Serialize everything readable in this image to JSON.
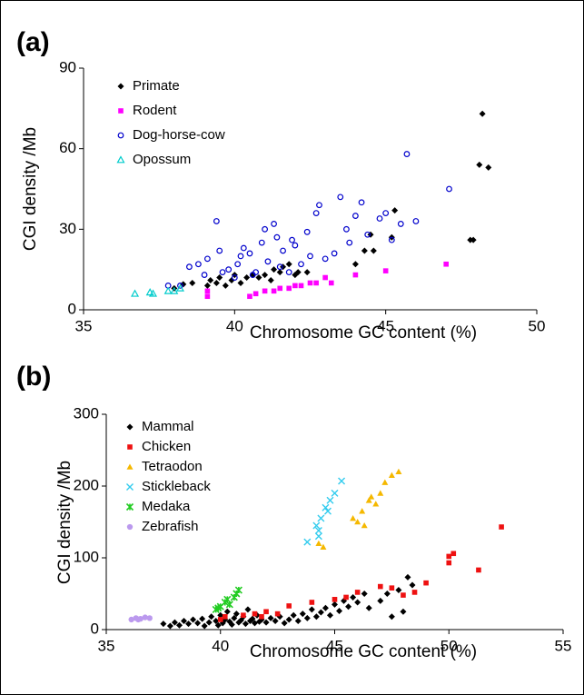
{
  "chart_data": [
    {
      "type": "scatter",
      "panel_label": "(a)",
      "xlabel": "Chromosome GC content (%)",
      "ylabel": "CGI density /Mb",
      "xlim": [
        35,
        50
      ],
      "ylim": [
        0,
        90
      ],
      "xticks": [
        35,
        40,
        45,
        50
      ],
      "yticks": [
        0,
        30,
        60,
        90
      ],
      "legend": "upper left",
      "series": [
        {
          "name": "Primate",
          "color": "#000000",
          "marker": "diamond",
          "x": [
            38,
            38.3,
            38.6,
            39.1,
            39.2,
            39.4,
            39.5,
            39.7,
            39.9,
            40,
            40.2,
            40.4,
            40.6,
            40.8,
            41,
            41.2,
            41.3,
            41.5,
            41.6,
            41.8,
            42,
            42.1,
            42.4,
            44,
            44.3,
            44.5,
            44.6,
            45.2,
            45.3,
            47.8,
            47.9,
            48.1,
            48.2,
            48.4
          ],
          "values": [
            8,
            9.5,
            10,
            9,
            11,
            10,
            12,
            9,
            11,
            13,
            10,
            12,
            13,
            12,
            13,
            11,
            15,
            14,
            16,
            17,
            13,
            14,
            14,
            17,
            22,
            28,
            22,
            27,
            37,
            26,
            26,
            54,
            73,
            53
          ]
        },
        {
          "name": "Rodent",
          "color": "#ff00ff",
          "marker": "square",
          "x": [
            39.1,
            39.1,
            40.5,
            40.7,
            41,
            41.3,
            41.5,
            41.8,
            42,
            42.2,
            42.5,
            42.7,
            43,
            43.2,
            44,
            45,
            47
          ],
          "values": [
            5,
            7,
            5,
            6,
            7,
            7,
            8,
            8,
            9,
            9,
            10,
            10,
            12,
            10,
            13,
            14.5,
            17
          ]
        },
        {
          "name": "Dog-horse-cow",
          "color": "#0000cc",
          "marker": "circle-open",
          "x": [
            37.8,
            38.2,
            38.5,
            38.8,
            39,
            39.1,
            39.4,
            39.5,
            39.8,
            40,
            40.2,
            40.3,
            40.5,
            40.6,
            40.7,
            40.9,
            41,
            41.1,
            41.3,
            41.4,
            41.5,
            41.6,
            41.9,
            42,
            42.2,
            42.4,
            42.7,
            42.8,
            43,
            43.3,
            43.5,
            43.7,
            44,
            44.2,
            44.4,
            44.8,
            45,
            45.2,
            45.5,
            45.7,
            46,
            47.1,
            39.6,
            40.1,
            41.8,
            42.5,
            43.8
          ],
          "values": [
            9,
            9,
            16,
            17,
            13,
            19,
            33,
            22,
            15,
            12,
            20,
            23,
            21,
            13,
            14,
            25,
            30,
            18,
            32,
            27,
            16,
            22,
            26,
            24,
            17,
            29,
            36,
            39,
            19,
            21,
            42,
            30,
            35,
            40,
            28,
            34,
            36,
            26,
            32,
            58,
            33,
            45,
            14,
            17,
            14,
            20,
            25
          ]
        },
        {
          "name": "Opossum",
          "color": "#00cccc",
          "marker": "triangle-open",
          "x": [
            36.7,
            37.2,
            37.3,
            37.8,
            38,
            38.2
          ],
          "values": [
            6,
            6.5,
            6,
            7,
            7,
            8
          ]
        }
      ]
    },
    {
      "type": "scatter",
      "panel_label": "(b)",
      "xlabel": "Chromosome GC content (%)",
      "ylabel": "CGI density /Mb",
      "xlim": [
        35,
        55
      ],
      "ylim": [
        0,
        300
      ],
      "xticks": [
        35,
        40,
        45,
        50,
        55
      ],
      "yticks": [
        0,
        100,
        200,
        300
      ],
      "legend": "upper left",
      "series": [
        {
          "name": "Mammal",
          "color": "#000000",
          "marker": "diamond",
          "x": [
            37.5,
            37.8,
            38,
            38.2,
            38.4,
            38.6,
            38.8,
            39,
            39.2,
            39.3,
            39.5,
            39.6,
            39.8,
            39.9,
            40,
            40.1,
            40.2,
            40.3,
            40.4,
            40.5,
            40.6,
            40.7,
            40.8,
            40.9,
            41,
            41.1,
            41.2,
            41.3,
            41.4,
            41.5,
            41.6,
            41.7,
            41.8,
            42,
            42.2,
            42.4,
            42.6,
            42.8,
            43,
            43.2,
            43.4,
            43.6,
            43.8,
            44,
            44.2,
            44.4,
            44.6,
            44.8,
            45,
            45.2,
            45.4,
            45.6,
            45.8,
            46,
            46.3,
            46.5,
            47,
            47.5,
            47.8,
            48,
            48.2,
            48.4,
            47.3
          ],
          "values": [
            8,
            5,
            10,
            6,
            12,
            8,
            14,
            9,
            15,
            5,
            10,
            18,
            12,
            6,
            20,
            9,
            14,
            25,
            11,
            7,
            16,
            22,
            10,
            13,
            18,
            8,
            28,
            12,
            15,
            9,
            20,
            11,
            14,
            10,
            16,
            12,
            18,
            9,
            14,
            20,
            12,
            22,
            16,
            28,
            18,
            24,
            30,
            20,
            35,
            26,
            40,
            32,
            45,
            38,
            50,
            30,
            40,
            18,
            55,
            25,
            73,
            62,
            50
          ]
        },
        {
          "name": "Chicken",
          "color": "#ee1111",
          "marker": "square",
          "x": [
            40,
            40.2,
            41,
            41.5,
            42,
            43,
            44,
            45,
            45.5,
            46,
            47,
            47.5,
            48,
            48.5,
            49,
            50,
            50,
            50.2,
            51.3,
            52.3,
            41.8,
            42.5
          ],
          "values": [
            14,
            18,
            20,
            22,
            25,
            33,
            38,
            42,
            45,
            52,
            60,
            58,
            48,
            52,
            65,
            93,
            102,
            106,
            83,
            143,
            18,
            22
          ]
        },
        {
          "name": "Tetraodon",
          "color": "#f5b800",
          "marker": "triangle",
          "x": [
            44.3,
            44.5,
            45.8,
            46,
            46.2,
            46.5,
            46.8,
            47,
            47.2,
            47.5,
            47.8,
            46.3,
            46.6
          ],
          "values": [
            120,
            115,
            155,
            150,
            165,
            180,
            175,
            190,
            205,
            215,
            220,
            145,
            185
          ]
        },
        {
          "name": "Stickleback",
          "color": "#33ccee",
          "marker": "x",
          "x": [
            43.8,
            44.2,
            44.3,
            44.4,
            44.6,
            44.8,
            45,
            45.3,
            44.7,
            44.3
          ],
          "values": [
            122,
            145,
            130,
            155,
            170,
            180,
            190,
            207,
            165,
            138
          ]
        },
        {
          "name": "Medaka",
          "color": "#22cc22",
          "marker": "star",
          "x": [
            39.8,
            40,
            40.2,
            40.4,
            40.6,
            40.8,
            40.3,
            40.7,
            39.9
          ],
          "values": [
            28,
            32,
            38,
            35,
            45,
            55,
            42,
            50,
            30
          ]
        },
        {
          "name": "Zebrafish",
          "color": "#bb99ee",
          "marker": "circle",
          "x": [
            36.1,
            36.3,
            36.5,
            36.7,
            36.9,
            36.4
          ],
          "values": [
            14,
            16,
            15,
            17,
            16,
            14
          ]
        }
      ]
    }
  ]
}
